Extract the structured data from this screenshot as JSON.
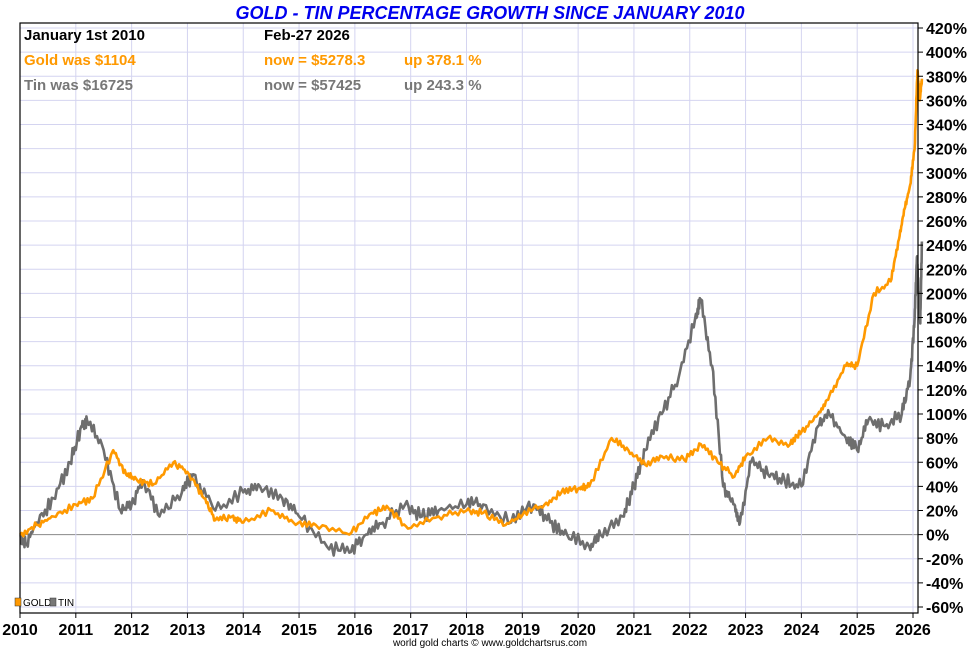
{
  "chart_data": {
    "type": "line",
    "title": "GOLD - TIN PERCENTAGE GROWTH SINCE JANUARY 2010",
    "info": {
      "start_label": "January 1st 2010",
      "end_label": "Feb-27  2026",
      "gold_was": "Gold was $1104",
      "gold_now": "now = $5278.3",
      "gold_up": "up 378.1 %",
      "tin_was": "Tin was $16725",
      "tin_now": "now = $57425",
      "tin_up": "up 243.3 %"
    },
    "xlabel": "",
    "ylabel": "",
    "xlim": [
      2010,
      2026.16
    ],
    "ylim": [
      -60,
      420
    ],
    "x_ticks": [
      "2010",
      "2011",
      "2012",
      "2013",
      "2014",
      "2015",
      "2016",
      "2017",
      "2018",
      "2019",
      "2020",
      "2021",
      "2022",
      "2023",
      "2024",
      "2025",
      "2026"
    ],
    "y_ticks": [
      "420%",
      "400%",
      "380%",
      "360%",
      "340%",
      "320%",
      "300%",
      "280%",
      "260%",
      "240%",
      "220%",
      "200%",
      "180%",
      "160%",
      "140%",
      "120%",
      "100%",
      "80%",
      "60%",
      "40%",
      "20%",
      "0%",
      "-20%",
      "-40%",
      "-60%"
    ],
    "grid": true,
    "legend": {
      "position": "bottom-left",
      "entries": [
        "GOLD",
        "TIN"
      ]
    },
    "footer": "world gold charts © www.goldchartsrus.com",
    "series": [
      {
        "name": "GOLD",
        "color": "#ff9900",
        "x": [
          2010,
          2010.3,
          2010.6,
          2011,
          2011.3,
          2011.67,
          2011.9,
          2012.1,
          2012.4,
          2012.75,
          2013,
          2013.3,
          2013.5,
          2013.8,
          2014,
          2014.5,
          2014.9,
          2015.3,
          2015.9,
          2016.3,
          2016.6,
          2016.95,
          2017.5,
          2018,
          2018.3,
          2018.7,
          2019,
          2019.4,
          2019.7,
          2020,
          2020.2,
          2020.6,
          2020.9,
          2021.2,
          2021.5,
          2021.9,
          2022.2,
          2022.5,
          2022.8,
          2023,
          2023.4,
          2023.8,
          2024,
          2024.3,
          2024.5,
          2024.8,
          2025,
          2025.3,
          2025.6,
          2025.75,
          2025.85,
          2025.95,
          2026.03,
          2026.08,
          2026.12,
          2026.16
        ],
        "values": [
          0,
          8,
          15,
          25,
          30,
          70,
          50,
          45,
          42,
          60,
          52,
          30,
          12,
          15,
          10,
          20,
          10,
          8,
          0,
          18,
          22,
          5,
          15,
          20,
          18,
          8,
          16,
          25,
          35,
          38,
          40,
          80,
          70,
          58,
          65,
          62,
          75,
          60,
          48,
          65,
          80,
          75,
          85,
          100,
          115,
          140,
          140,
          200,
          210,
          245,
          270,
          290,
          320,
          385,
          360,
          378
        ]
      },
      {
        "name": "TIN",
        "color": "#6e6e6e",
        "x": [
          2010,
          2010.1,
          2010.3,
          2010.6,
          2010.9,
          2011.1,
          2011.2,
          2011.5,
          2011.8,
          2012,
          2012.2,
          2012.5,
          2012.9,
          2013.1,
          2013.5,
          2014,
          2014.3,
          2014.7,
          2015,
          2015.5,
          2015.9,
          2016.2,
          2016.5,
          2016.9,
          2017.2,
          2017.5,
          2018,
          2018.3,
          2018.8,
          2019.2,
          2019.5,
          2019.8,
          2020.2,
          2020.4,
          2020.8,
          2021,
          2021.2,
          2021.5,
          2021.8,
          2022.1,
          2022.2,
          2022.4,
          2022.6,
          2022.8,
          2022.9,
          2023.1,
          2023.4,
          2023.7,
          2024,
          2024.3,
          2024.5,
          2024.8,
          2025,
          2025.2,
          2025.5,
          2025.8,
          2025.95,
          2026.03,
          2026.07,
          2026.1,
          2026.13,
          2026.16
        ],
        "values": [
          0,
          -8,
          10,
          30,
          60,
          90,
          95,
          70,
          20,
          25,
          45,
          15,
          35,
          50,
          20,
          35,
          40,
          30,
          15,
          -10,
          -15,
          0,
          10,
          25,
          15,
          20,
          25,
          25,
          10,
          25,
          10,
          0,
          -10,
          0,
          15,
          40,
          70,
          100,
          130,
          180,
          195,
          140,
          40,
          25,
          10,
          60,
          50,
          45,
          40,
          90,
          100,
          80,
          70,
          95,
          90,
          100,
          130,
          180,
          230,
          200,
          175,
          243
        ]
      }
    ]
  }
}
